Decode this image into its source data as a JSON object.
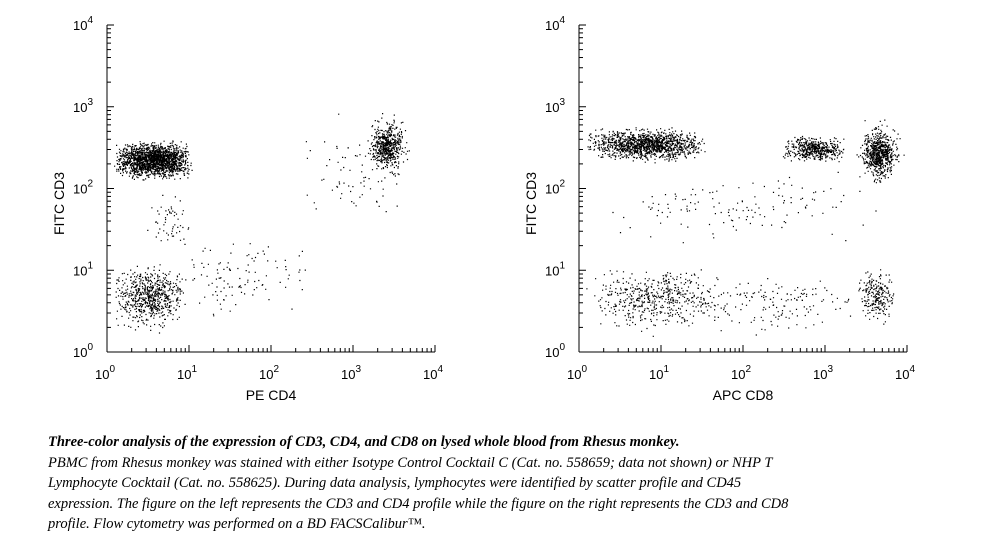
{
  "chart_data": [
    {
      "type": "scatter",
      "scale": "log",
      "xlabel": "PE CD4",
      "ylabel": "FITC CD3",
      "xlim": [
        1,
        10000
      ],
      "ylim": [
        1,
        10000
      ],
      "x_ticks": [
        {
          "base": "10",
          "exp": "0"
        },
        {
          "base": "10",
          "exp": "1"
        },
        {
          "base": "10",
          "exp": "2"
        },
        {
          "base": "10",
          "exp": "3"
        },
        {
          "base": "10",
          "exp": "4"
        }
      ],
      "y_ticks": [
        {
          "base": "10",
          "exp": "0"
        },
        {
          "base": "10",
          "exp": "1"
        },
        {
          "base": "10",
          "exp": "2"
        },
        {
          "base": "10",
          "exp": "3"
        },
        {
          "base": "10",
          "exp": "4"
        }
      ],
      "point_color": "#000000",
      "populations": [
        {
          "x_range": [
            1.2,
            11
          ],
          "y_range": [
            120,
            420
          ],
          "count": 1800
        },
        {
          "x_center": 2600,
          "y_center": 330,
          "count": 550
        },
        {
          "x_range": [
            1.2,
            9
          ],
          "y_range": [
            1.6,
            14
          ],
          "count": 650
        },
        {
          "x_range": [
            6,
            300
          ],
          "y_range": [
            2,
            35
          ],
          "count": 110
        },
        {
          "x_range": [
            3,
            12
          ],
          "y_range": [
            15,
            110
          ],
          "count": 55
        },
        {
          "x_range": [
            200,
            4500
          ],
          "y_range": [
            30,
            900
          ],
          "count": 70
        }
      ]
    },
    {
      "type": "scatter",
      "scale": "log",
      "xlabel": "APC CD8",
      "ylabel": "FITC CD3",
      "xlim": [
        1,
        10000
      ],
      "ylim": [
        1,
        10000
      ],
      "x_ticks": [
        {
          "base": "10",
          "exp": "0"
        },
        {
          "base": "10",
          "exp": "1"
        },
        {
          "base": "10",
          "exp": "2"
        },
        {
          "base": "10",
          "exp": "3"
        },
        {
          "base": "10",
          "exp": "4"
        }
      ],
      "y_ticks": [
        {
          "base": "10",
          "exp": "0"
        },
        {
          "base": "10",
          "exp": "1"
        },
        {
          "base": "10",
          "exp": "2"
        },
        {
          "base": "10",
          "exp": "3"
        },
        {
          "base": "10",
          "exp": "4"
        }
      ],
      "point_color": "#000000",
      "populations": [
        {
          "x_range": [
            1.2,
            35
          ],
          "y_range": [
            200,
            600
          ],
          "count": 1300
        },
        {
          "x_range": [
            300,
            1800
          ],
          "y_range": [
            200,
            480
          ],
          "count": 480
        },
        {
          "x_center": 4500,
          "y_center": 270,
          "count": 700
        },
        {
          "x_range": [
            1.2,
            60
          ],
          "y_range": [
            1.5,
            14
          ],
          "count": 500
        },
        {
          "x_range": [
            2500,
            7000
          ],
          "y_range": [
            2,
            12
          ],
          "count": 230
        },
        {
          "x_range": [
            30,
            2500
          ],
          "y_range": [
            1.5,
            10
          ],
          "count": 150
        },
        {
          "x_range": [
            1.5,
            6000
          ],
          "y_range": [
            18,
            200
          ],
          "count": 130
        }
      ]
    }
  ],
  "caption": {
    "title": "Three-color analysis of the expression of CD3, CD4, and CD8 on lysed whole blood from Rhesus monkey.",
    "body": "PBMC from Rhesus monkey was stained with either Isotype Control Cocktail C (Cat. no. 558659; data not shown) or NHP T Lymphocyte Cocktail (Cat. no. 558625).  During data analysis, lymphocytes were identified by scatter profile and CD45 expression.  The figure on the left represents the CD3 and CD4 profile while the figure on the right represents the CD3 and CD8 profile.  Flow cytometry was performed on a BD FACSCalibur™."
  }
}
